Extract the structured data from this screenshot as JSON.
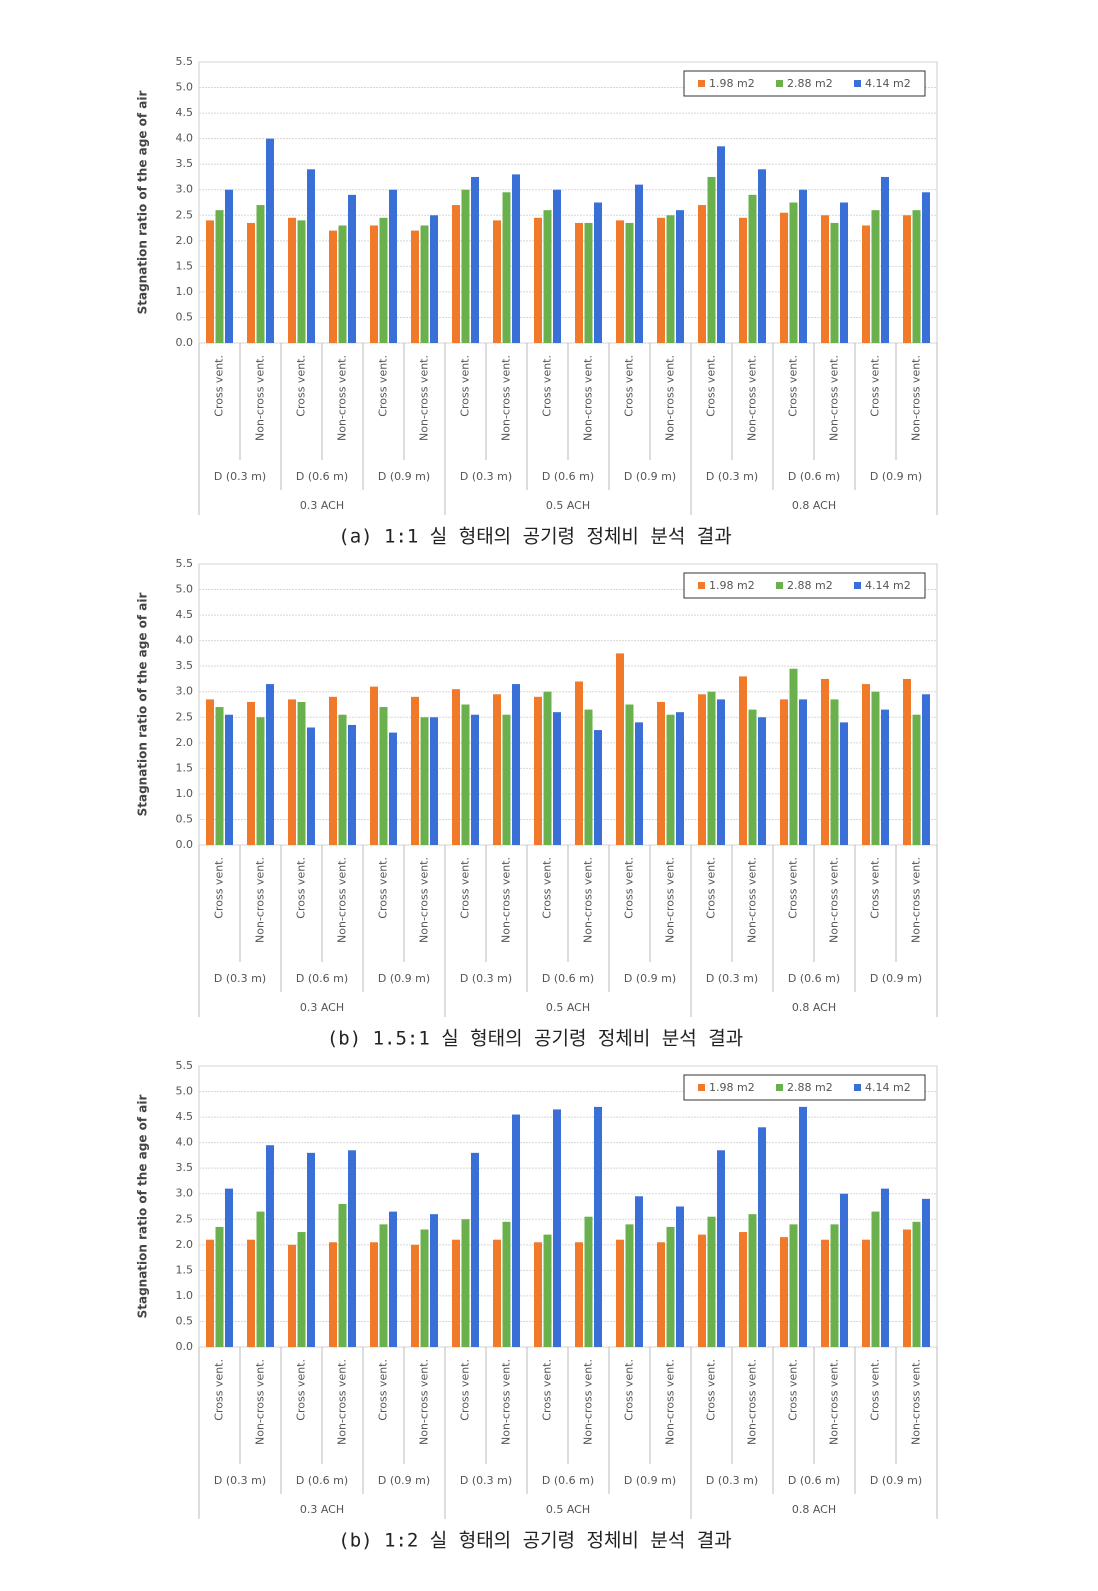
{
  "chart_data": [
    {
      "type": "bar",
      "caption": "(a) 1:1 실 형태의 공기령 정체비 분석 결과",
      "y_label": "Stagnation ratio of the age of air",
      "categories": [
        "Cross vent.",
        "Non-cross vent.",
        "Cross vent.",
        "Non-cross vent.",
        "Cross vent.",
        "Non-cross vent.",
        "Cross vent.",
        "Non-cross vent.",
        "Cross vent.",
        "Non-cross vent.",
        "Cross vent.",
        "Non-cross vent.",
        "Cross vent.",
        "Non-cross vent.",
        "Cross vent.",
        "Non-cross vent.",
        "Cross vent.",
        "Non-cross vent."
      ],
      "subgroups": [
        "D (0.3 m)",
        "D (0.6 m)",
        "D (0.9 m)",
        "D (0.3 m)",
        "D (0.6 m)",
        "D (0.9 m)",
        "D (0.3 m)",
        "D (0.6 m)",
        "D (0.9 m)"
      ],
      "groups": [
        "0.3 ACH",
        "0.5 ACH",
        "0.8 ACH"
      ],
      "series": [
        {
          "name": "1.98 m2",
          "color": "#f07a2a",
          "values": [
            2.4,
            2.35,
            2.45,
            2.2,
            2.3,
            2.2,
            2.7,
            2.4,
            2.45,
            2.35,
            2.4,
            2.45,
            2.7,
            2.45,
            2.55,
            2.5,
            2.3,
            2.5
          ]
        },
        {
          "name": "2.88 m2",
          "color": "#6ab04c",
          "values": [
            2.6,
            2.7,
            2.4,
            2.3,
            2.45,
            2.3,
            3.0,
            2.95,
            2.6,
            2.35,
            2.35,
            2.5,
            3.25,
            2.9,
            2.75,
            2.35,
            2.6,
            2.6
          ]
        },
        {
          "name": "4.14 m2",
          "color": "#3a6fd8",
          "values": [
            3.0,
            4.0,
            3.4,
            2.9,
            3.0,
            2.5,
            3.25,
            3.3,
            3.0,
            2.75,
            3.1,
            2.6,
            3.85,
            3.4,
            3.0,
            2.75,
            3.25,
            2.95
          ]
        }
      ],
      "ylim": [
        0,
        5.5
      ],
      "yticks": [
        {
          "value": 0,
          "label": "0.0"
        },
        {
          "value": 0.5,
          "label": "0.5"
        },
        {
          "value": 1,
          "label": "1.0"
        },
        {
          "value": 1.5,
          "label": "1.5"
        },
        {
          "value": 2,
          "label": "2.0"
        },
        {
          "value": 2.5,
          "label": "2.5"
        },
        {
          "value": 3,
          "label": "3.0"
        },
        {
          "value": 3.5,
          "label": "3.5"
        },
        {
          "value": 4,
          "label": "4.0"
        },
        {
          "value": 4.5,
          "label": "4.5"
        },
        {
          "value": 5,
          "label": "5.0"
        },
        {
          "value": 5.5,
          "label": "5.5"
        }
      ],
      "grid": true,
      "legend": "top-right"
    },
    {
      "type": "bar",
      "caption": "(b) 1.5:1 실 형태의 공기령 정체비 분석 결과",
      "y_label": "Stagnation ratio of the age of air",
      "categories": [
        "Cross vent.",
        "Non-cross vent.",
        "Cross vent.",
        "Non-cross vent.",
        "Cross vent.",
        "Non-cross vent.",
        "Cross vent.",
        "Non-cross vent.",
        "Cross vent.",
        "Non-cross vent.",
        "Cross vent.",
        "Non-cross vent.",
        "Cross vent.",
        "Non-cross vent.",
        "Cross vent.",
        "Non-cross vent.",
        "Cross vent.",
        "Non-cross vent."
      ],
      "subgroups": [
        "D (0.3 m)",
        "D (0.6 m)",
        "D (0.9 m)",
        "D (0.3 m)",
        "D (0.6 m)",
        "D (0.9 m)",
        "D (0.3 m)",
        "D (0.6 m)",
        "D (0.9 m)"
      ],
      "groups": [
        "0.3 ACH",
        "0.5 ACH",
        "0.8 ACH"
      ],
      "series": [
        {
          "name": "1.98 m2",
          "color": "#f07a2a",
          "values": [
            2.85,
            2.8,
            2.85,
            2.9,
            3.1,
            2.9,
            3.05,
            2.95,
            2.9,
            3.2,
            3.75,
            2.8,
            2.95,
            3.3,
            2.85,
            3.25,
            3.15,
            3.25
          ]
        },
        {
          "name": "2.88 m2",
          "color": "#6ab04c",
          "values": [
            2.7,
            2.5,
            2.8,
            2.55,
            2.7,
            2.5,
            2.75,
            2.55,
            3.0,
            2.65,
            2.75,
            2.55,
            3.0,
            2.65,
            3.45,
            2.85,
            3.0,
            2.55
          ]
        },
        {
          "name": "4.14 m2",
          "color": "#3a6fd8",
          "values": [
            2.55,
            3.15,
            2.3,
            2.35,
            2.2,
            2.5,
            2.55,
            3.15,
            2.6,
            2.25,
            2.4,
            2.6,
            2.85,
            2.5,
            2.85,
            2.4,
            2.65,
            2.95
          ]
        }
      ],
      "ylim": [
        0,
        5.5
      ],
      "yticks": [
        {
          "value": 0,
          "label": "0.0"
        },
        {
          "value": 0.5,
          "label": "0.5"
        },
        {
          "value": 1,
          "label": "1.0"
        },
        {
          "value": 1.5,
          "label": "1.5"
        },
        {
          "value": 2,
          "label": "2.0"
        },
        {
          "value": 2.5,
          "label": "2.5"
        },
        {
          "value": 3,
          "label": "3.0"
        },
        {
          "value": 3.5,
          "label": "3.5"
        },
        {
          "value": 4,
          "label": "4.0"
        },
        {
          "value": 4.5,
          "label": "4.5"
        },
        {
          "value": 5,
          "label": "5.0"
        },
        {
          "value": 5.5,
          "label": "5.5"
        }
      ],
      "grid": true,
      "legend": "top-right"
    },
    {
      "type": "bar",
      "caption": "(b) 1:2 실 형태의 공기령 정체비 분석 결과",
      "y_label": "Stagnation ratio of the age of air",
      "categories": [
        "Cross vent.",
        "Non-cross vent.",
        "Cross vent.",
        "Non-cross vent.",
        "Cross vent.",
        "Non-cross vent.",
        "Cross vent.",
        "Non-cross vent.",
        "Cross vent.",
        "Non-cross vent.",
        "Cross vent.",
        "Non-cross vent.",
        "Cross vent.",
        "Non-cross vent.",
        "Cross vent.",
        "Non-cross vent.",
        "Cross vent.",
        "Non-cross vent."
      ],
      "subgroups": [
        "D (0.3 m)",
        "D (0.6 m)",
        "D (0.9 m)",
        "D (0.3 m)",
        "D (0.6 m)",
        "D (0.9 m)",
        "D (0.3 m)",
        "D (0.6 m)",
        "D (0.9 m)"
      ],
      "groups": [
        "0.3 ACH",
        "0.5 ACH",
        "0.8 ACH"
      ],
      "series": [
        {
          "name": "1.98 m2",
          "color": "#f07a2a",
          "values": [
            2.1,
            2.1,
            2.0,
            2.05,
            2.05,
            2.0,
            2.1,
            2.1,
            2.05,
            2.05,
            2.1,
            2.05,
            2.2,
            2.25,
            2.15,
            2.1,
            2.1,
            2.3
          ]
        },
        {
          "name": "2.88 m2",
          "color": "#6ab04c",
          "values": [
            2.35,
            2.65,
            2.25,
            2.8,
            2.4,
            2.3,
            2.5,
            2.45,
            2.2,
            2.55,
            2.4,
            2.35,
            2.55,
            2.6,
            2.4,
            2.4,
            2.65,
            2.45
          ]
        },
        {
          "name": "4.14 m2",
          "color": "#3a6fd8",
          "values": [
            3.1,
            3.95,
            3.8,
            3.85,
            2.65,
            2.6,
            3.8,
            4.55,
            4.65,
            4.7,
            2.95,
            2.75,
            3.85,
            4.3,
            4.7,
            3.0,
            3.1,
            2.9
          ]
        }
      ],
      "ylim": [
        0,
        5.5
      ],
      "yticks": [
        {
          "value": 0,
          "label": "0.0"
        },
        {
          "value": 0.5,
          "label": "0.5"
        },
        {
          "value": 1,
          "label": "1.0"
        },
        {
          "value": 1.5,
          "label": "1.5"
        },
        {
          "value": 2,
          "label": "2.0"
        },
        {
          "value": 2.5,
          "label": "2.5"
        },
        {
          "value": 3,
          "label": "3.0"
        },
        {
          "value": 3.5,
          "label": "3.5"
        },
        {
          "value": 4,
          "label": "4.0"
        },
        {
          "value": 4.5,
          "label": "4.5"
        },
        {
          "value": 5,
          "label": "5.0"
        },
        {
          "value": 5.5,
          "label": "5.5"
        }
      ],
      "grid": true,
      "legend": "top-right"
    }
  ]
}
